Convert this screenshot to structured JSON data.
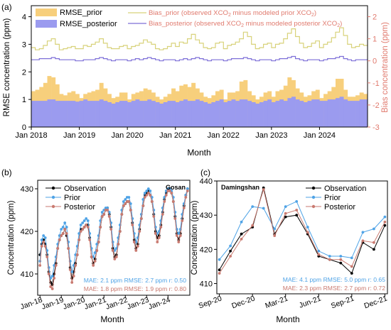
{
  "chart_data": [
    {
      "type": "bar",
      "panel_label": "(a)",
      "xlabel": "Month",
      "ylabel": "RMSE concentration (ppm)",
      "y2label": "Bias concentration (ppm)",
      "ylim": [
        0,
        4.4
      ],
      "y2lim": [
        -3,
        2.5
      ],
      "yticks": [
        "0",
        "1",
        "2",
        "3",
        "4"
      ],
      "y2ticks": [
        "-3",
        "-2",
        "-1",
        "0",
        "1",
        "2"
      ],
      "x_tick_labels": [
        "Jan 2018",
        "Jan 2019",
        "Jan 2020",
        "Jan 2021",
        "Jan 2022",
        "Jan 2023",
        "Jan 2024"
      ],
      "legend_left": [
        "RMSE_prior",
        "RMSE_posterior"
      ],
      "legend_right": [
        {
          "pre": "Bias_prior (observed XCO",
          "post": " minus modeled prior XCO",
          "end": ")"
        },
        {
          "pre": "Bias_posterior (observed XCO",
          "post": " minus modeled posterior XCO",
          "end": ")"
        }
      ],
      "sub2": "2",
      "colors": {
        "rmse_prior": "#f7cf7c",
        "rmse_posterior": "#9b9bef",
        "bias_prior": "#d8d27a",
        "bias_posterior": "#7d6fd8",
        "right_axis": "#e07a6e"
      },
      "series": [
        {
          "name": "RMSE_prior",
          "values": [
            1.3,
            1.35,
            1.45,
            1.6,
            1.85,
            1.8,
            1.55,
            1.2,
            1.15,
            1.25,
            1.3,
            1.2,
            1.05,
            1.2,
            1.25,
            1.3,
            1.35,
            1.6,
            1.4,
            1.2,
            1.05,
            1.1,
            1.25,
            1.25,
            1.0,
            1.2,
            1.25,
            1.3,
            1.4,
            1.35,
            1.25,
            1.1,
            1.0,
            1.1,
            1.2,
            1.4,
            1.3,
            1.5,
            1.55,
            1.45,
            1.6,
            1.4,
            1.25,
            1.1,
            1.05,
            1.15,
            1.3,
            1.35,
            1.0,
            1.25,
            1.25,
            1.3,
            1.65,
            1.7,
            1.3,
            1.15,
            1.0,
            1.1,
            1.25,
            1.3,
            1.1,
            1.3,
            1.35,
            1.5,
            1.8,
            1.7,
            1.4,
            1.25,
            1.1,
            1.15,
            1.3,
            1.35,
            1.05,
            1.2,
            1.3,
            1.45,
            1.75,
            1.75,
            1.35,
            1.1,
            1.1,
            1.15,
            1.25,
            1.2
          ]
        },
        {
          "name": "RMSE_posterior",
          "values": [
            0.95,
            0.95,
            0.95,
            0.95,
            1.0,
            1.0,
            0.95,
            0.95,
            0.95,
            0.95,
            0.95,
            0.92,
            0.95,
            1.0,
            0.95,
            0.95,
            0.95,
            1.0,
            0.95,
            0.9,
            0.85,
            0.9,
            0.95,
            0.95,
            0.9,
            0.95,
            1.0,
            0.95,
            0.95,
            1.0,
            0.95,
            0.9,
            0.85,
            0.9,
            0.95,
            0.95,
            0.9,
            0.95,
            1.0,
            0.95,
            0.95,
            1.0,
            0.95,
            0.9,
            0.85,
            0.9,
            0.95,
            1.0,
            0.9,
            0.95,
            1.0,
            0.95,
            1.0,
            1.0,
            0.95,
            0.9,
            0.85,
            0.9,
            0.95,
            1.0,
            0.9,
            0.95,
            1.0,
            0.95,
            1.05,
            1.1,
            1.0,
            0.95,
            0.9,
            0.95,
            1.0,
            1.0,
            0.95,
            0.95,
            1.0,
            1.0,
            1.05,
            1.1,
            1.0,
            0.95,
            0.95,
            0.95,
            1.0,
            1.0
          ]
        },
        {
          "name": "Bias_prior",
          "axis": "right",
          "values": [
            0.6,
            0.5,
            0.55,
            0.7,
            0.9,
            1.0,
            0.75,
            0.5,
            0.55,
            0.6,
            0.65,
            0.55,
            0.55,
            0.7,
            0.65,
            0.75,
            0.85,
            1.0,
            0.8,
            0.6,
            0.55,
            0.55,
            0.65,
            0.7,
            0.55,
            0.65,
            0.7,
            0.8,
            0.95,
            0.85,
            0.75,
            0.55,
            0.5,
            0.55,
            0.65,
            0.8,
            0.65,
            0.85,
            0.8,
            1.0,
            1.2,
            0.95,
            0.8,
            0.6,
            0.55,
            0.6,
            0.8,
            0.85,
            0.55,
            0.7,
            0.75,
            0.85,
            1.0,
            1.3,
            1.1,
            0.75,
            0.55,
            0.6,
            0.75,
            0.8,
            0.6,
            0.75,
            0.8,
            1.0,
            1.25,
            1.45,
            1.1,
            0.8,
            0.6,
            0.65,
            0.8,
            0.9,
            0.6,
            0.75,
            0.85,
            1.05,
            1.3,
            1.5,
            1.15,
            0.75,
            0.6,
            0.65,
            0.75,
            0.7
          ]
        },
        {
          "name": "Bias_posterior",
          "axis": "right",
          "values": [
            0.05,
            0.05,
            0.1,
            0.1,
            0.1,
            0.15,
            0.1,
            0.05,
            0.05,
            0.05,
            0.05,
            0.0,
            0.0,
            0.05,
            0.05,
            0.05,
            0.1,
            0.15,
            0.1,
            0.05,
            0.0,
            0.05,
            0.05,
            0.05,
            0.0,
            0.05,
            0.1,
            0.05,
            0.1,
            0.15,
            0.1,
            0.05,
            0.0,
            0.05,
            0.05,
            0.05,
            0.0,
            0.05,
            0.1,
            0.05,
            0.1,
            0.15,
            0.1,
            0.05,
            0.0,
            0.05,
            0.05,
            0.05,
            0.0,
            0.05,
            0.1,
            0.1,
            0.1,
            0.15,
            0.1,
            0.05,
            0.0,
            0.05,
            0.05,
            0.05,
            0.0,
            0.05,
            0.1,
            0.1,
            0.15,
            0.2,
            0.1,
            0.05,
            0.0,
            0.05,
            0.05,
            0.05,
            0.0,
            0.05,
            0.1,
            0.1,
            0.15,
            0.2,
            0.1,
            0.05,
            0.0,
            0.05,
            0.05,
            0.05
          ]
        }
      ]
    },
    {
      "type": "line",
      "panel_label": "(b)",
      "station": "Gosan",
      "xlabel": "Month",
      "ylabel": "Concentration (ppm)",
      "ylim": [
        405,
        432
      ],
      "yticks": [
        "410",
        "420",
        "430"
      ],
      "x_tick_labels": [
        "Jan-18",
        "Jan-19",
        "Jan-20",
        "Jan-21",
        "Jan-22",
        "Jan-23",
        "Jan-24"
      ],
      "stats": [
        "MAE: 2.1 ppm RMSE: 2.7 ppm r: 0.50",
        "MAE: 1.8 ppm RMSE: 1.9 ppm r: 0.80"
      ],
      "colors": {
        "observation": "#000000",
        "prior": "#4fa3e6",
        "posterior": "#c97a70"
      },
      "series": [
        {
          "name": "Observation",
          "values": [
            414.5,
            417.0,
            418.0,
            417.0,
            414.5,
            410.5,
            408.0,
            407.5,
            410.0,
            412.5,
            416.0,
            418.0,
            419.0,
            419.5,
            420.5,
            419.0,
            416.0,
            411.5,
            409.0,
            410.5,
            412.5,
            414.5,
            418.0,
            420.5,
            420.5,
            421.0,
            421.5,
            421.5,
            418.5,
            414.0,
            412.5,
            413.5,
            415.5,
            417.5,
            421.0,
            423.5,
            424.0,
            425.0,
            425.5,
            424.0,
            421.0,
            416.0,
            414.0,
            414.5,
            417.0,
            420.0,
            424.0,
            426.0,
            426.5,
            427.0,
            427.0,
            425.0,
            422.0,
            418.0,
            416.0,
            417.0,
            420.5,
            423.0,
            426.0,
            428.5,
            429.0,
            429.5,
            428.5,
            427.0,
            424.0,
            420.0,
            418.5,
            419.0,
            421.5,
            424.5,
            427.5,
            429.0,
            430.0,
            430.0,
            429.0,
            427.0,
            423.5,
            419.5,
            418.0,
            419.5,
            423.0,
            426.0,
            428.5,
            430.0
          ]
        },
        {
          "name": "Prior",
          "values": [
            413.0,
            418.0,
            419.0,
            418.5,
            415.5,
            411.5,
            409.0,
            409.5,
            412.0,
            414.0,
            417.0,
            419.0,
            420.5,
            421.0,
            422.0,
            421.0,
            417.5,
            413.0,
            410.5,
            412.0,
            414.5,
            416.5,
            419.5,
            421.5,
            422.0,
            422.5,
            423.0,
            422.5,
            419.5,
            416.0,
            414.0,
            415.0,
            417.0,
            419.0,
            422.5,
            424.5,
            425.0,
            425.5,
            425.5,
            424.5,
            422.0,
            417.5,
            415.5,
            416.0,
            418.5,
            421.5,
            425.0,
            427.0,
            427.5,
            428.0,
            428.0,
            426.5,
            423.0,
            419.5,
            417.5,
            418.5,
            421.5,
            424.0,
            427.5,
            429.0,
            429.5,
            430.0,
            429.5,
            428.0,
            425.0,
            421.0,
            419.5,
            420.0,
            422.5,
            425.5,
            428.0,
            429.5,
            430.0,
            430.0,
            429.5,
            428.0,
            424.5,
            420.5,
            419.5,
            420.5,
            424.0,
            426.5,
            428.5,
            430.0
          ]
        },
        {
          "name": "Posterior",
          "values": [
            412.0,
            416.5,
            417.5,
            416.5,
            414.0,
            410.0,
            407.0,
            406.5,
            409.0,
            412.0,
            416.0,
            418.0,
            419.0,
            419.5,
            420.5,
            419.5,
            416.0,
            411.0,
            408.0,
            409.5,
            412.0,
            414.5,
            418.0,
            420.0,
            420.5,
            421.0,
            421.5,
            421.0,
            418.0,
            414.0,
            412.0,
            413.0,
            415.5,
            417.5,
            421.0,
            423.5,
            424.0,
            425.0,
            425.0,
            423.5,
            420.5,
            415.5,
            413.5,
            414.0,
            417.0,
            420.0,
            424.0,
            426.0,
            426.5,
            427.0,
            427.0,
            425.0,
            421.5,
            417.5,
            415.5,
            416.5,
            420.0,
            423.0,
            426.0,
            428.0,
            428.5,
            429.0,
            428.5,
            427.0,
            423.5,
            419.5,
            417.5,
            418.5,
            421.0,
            424.0,
            427.0,
            428.5,
            429.5,
            429.5,
            429.0,
            427.0,
            423.0,
            419.0,
            417.5,
            419.0,
            422.5,
            425.5,
            428.0,
            429.5
          ]
        }
      ]
    },
    {
      "type": "line",
      "panel_label": "(c)",
      "station": "Damingshan",
      "xlabel": "Month",
      "ylabel": "Concentration (ppm)",
      "ylim": [
        407,
        440
      ],
      "yticks": [
        "410",
        "420",
        "430",
        "440"
      ],
      "x_tick_labels": [
        "Sep-20",
        "Dec-20",
        "Mar-21",
        "Jun-21",
        "Sep-21",
        "Dec-21"
      ],
      "stats": [
        "MAE: 4.1 ppm RMSE: 5.0 ppm r: 0.65",
        "MAE: 2.3 ppm RMSE: 2.7 ppm r: 0.72"
      ],
      "colors": {
        "observation": "#000000",
        "prior": "#4fa3e6",
        "posterior": "#c97a70"
      },
      "x": [
        "Sep-20",
        "Oct-20",
        "Nov-20",
        "Dec-20",
        "Jan-21",
        "Feb-21",
        "Mar-21",
        "Apr-21",
        "May-21",
        "Jun-21",
        "Jul-21",
        "Aug-21",
        "Sep-21",
        "Oct-21",
        "Nov-21",
        "Dec-21"
      ],
      "series": [
        {
          "name": "Observation",
          "values": [
            414.0,
            419.5,
            424.5,
            426.5,
            438.0,
            424.5,
            429.5,
            430.0,
            424.5,
            418.0,
            417.0,
            416.0,
            413.0,
            422.0,
            420.0,
            427.0
          ]
        },
        {
          "name": "Prior",
          "values": [
            417.0,
            421.0,
            428.0,
            432.5,
            432.0,
            426.0,
            432.5,
            434.0,
            426.5,
            419.5,
            418.0,
            418.0,
            417.5,
            425.0,
            426.0,
            429.5
          ]
        },
        {
          "name": "Posterior",
          "values": [
            413.0,
            418.0,
            423.0,
            427.0,
            437.5,
            424.0,
            430.5,
            431.5,
            425.0,
            418.5,
            417.0,
            417.0,
            415.0,
            422.5,
            422.0,
            428.0
          ]
        }
      ]
    }
  ]
}
